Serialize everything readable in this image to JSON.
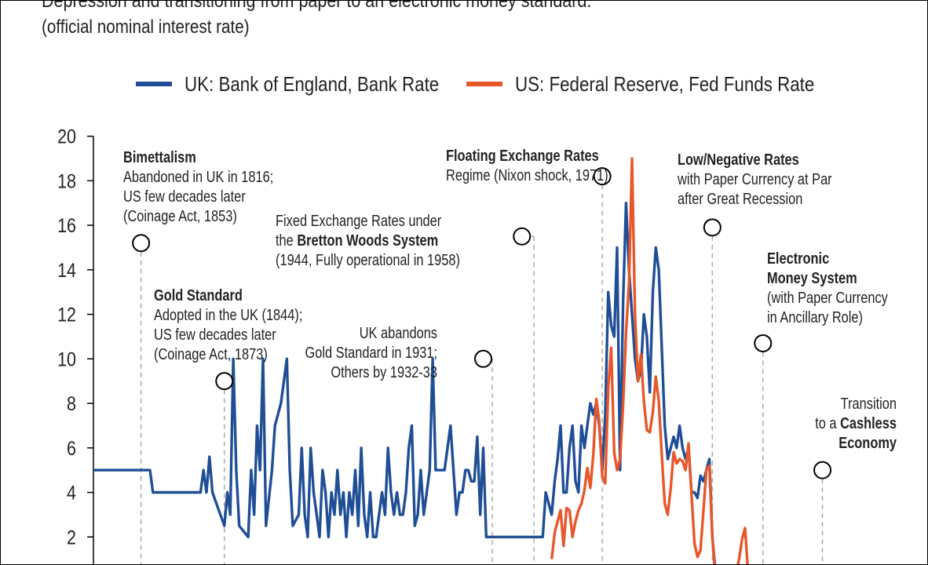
{
  "title": "Depression and transitioning from paper to an electronic money standard.",
  "subtitle": "(official nominal interest rate)",
  "colors": {
    "uk": "#1f4e96",
    "us": "#e8562a",
    "annotation": "#000000",
    "grid_dash": "#aaaaaa"
  },
  "chart_data": {
    "type": "line",
    "title": "",
    "xlabel": "",
    "ylabel": "",
    "ylim": [
      0,
      20
    ],
    "yticks": [
      "2",
      "4",
      "6",
      "8",
      "10",
      "12",
      "14",
      "16",
      "18",
      "20"
    ],
    "x_unit": "year",
    "xlim": [
      1800,
      2050
    ],
    "legend_position": "top",
    "legend": [
      {
        "label": "UK: Bank of England, Bank Rate",
        "color": "#1f4e96"
      },
      {
        "label": "US: Federal Reserve, Fed Funds Rate",
        "color": "#e8562a"
      }
    ],
    "series": [
      {
        "name": "UK: Bank of England, Bank Rate",
        "color": "#1f4e96",
        "points": [
          [
            1800,
            5
          ],
          [
            1819,
            5
          ],
          [
            1820,
            4
          ],
          [
            1830,
            4
          ],
          [
            1836,
            4
          ],
          [
            1837,
            5
          ],
          [
            1838,
            4
          ],
          [
            1839,
            5.6
          ],
          [
            1840,
            4
          ],
          [
            1844,
            2.5
          ],
          [
            1845,
            4
          ],
          [
            1846,
            3
          ],
          [
            1847,
            10
          ],
          [
            1848,
            5
          ],
          [
            1849,
            2.5
          ],
          [
            1852,
            2
          ],
          [
            1853,
            5
          ],
          [
            1854,
            3
          ],
          [
            1855,
            7
          ],
          [
            1856,
            5
          ],
          [
            1857,
            10
          ],
          [
            1858,
            2.5
          ],
          [
            1860,
            5
          ],
          [
            1861,
            7
          ],
          [
            1863,
            8
          ],
          [
            1864,
            9
          ],
          [
            1865,
            10
          ],
          [
            1866,
            5
          ],
          [
            1867,
            2.5
          ],
          [
            1869,
            3
          ],
          [
            1870,
            6
          ],
          [
            1871,
            3
          ],
          [
            1872,
            2
          ],
          [
            1873,
            6
          ],
          [
            1874,
            4
          ],
          [
            1875,
            3
          ],
          [
            1876,
            2
          ],
          [
            1877,
            5
          ],
          [
            1878,
            4
          ],
          [
            1879,
            2
          ],
          [
            1880,
            4
          ],
          [
            1881,
            3
          ],
          [
            1882,
            5
          ],
          [
            1883,
            3
          ],
          [
            1884,
            4
          ],
          [
            1885,
            2
          ],
          [
            1886,
            4
          ],
          [
            1887,
            3
          ],
          [
            1888,
            5
          ],
          [
            1889,
            2.5
          ],
          [
            1890,
            6
          ],
          [
            1891,
            3
          ],
          [
            1892,
            2
          ],
          [
            1893,
            4
          ],
          [
            1894,
            2
          ],
          [
            1895,
            2
          ],
          [
            1896,
            3
          ],
          [
            1897,
            4
          ],
          [
            1898,
            3
          ],
          [
            1899,
            6
          ],
          [
            1900,
            4
          ],
          [
            1901,
            3
          ],
          [
            1902,
            4
          ],
          [
            1903,
            3
          ],
          [
            1904,
            3
          ],
          [
            1905,
            4
          ],
          [
            1906,
            6
          ],
          [
            1907,
            7
          ],
          [
            1908,
            2.5
          ],
          [
            1909,
            3
          ],
          [
            1910,
            5
          ],
          [
            1911,
            3
          ],
          [
            1912,
            4
          ],
          [
            1913,
            5
          ],
          [
            1914,
            10
          ],
          [
            1915,
            5
          ],
          [
            1916,
            5
          ],
          [
            1917,
            5
          ],
          [
            1918,
            5
          ],
          [
            1919,
            6
          ],
          [
            1920,
            7
          ],
          [
            1921,
            5
          ],
          [
            1922,
            3
          ],
          [
            1923,
            4
          ],
          [
            1924,
            4
          ],
          [
            1925,
            5
          ],
          [
            1926,
            5
          ],
          [
            1927,
            4.5
          ],
          [
            1928,
            4.5
          ],
          [
            1929,
            6.5
          ],
          [
            1930,
            3
          ],
          [
            1931,
            6
          ],
          [
            1932,
            2
          ],
          [
            1939,
            2
          ],
          [
            1940,
            2
          ],
          [
            1951,
            2
          ],
          [
            1952,
            4
          ],
          [
            1953,
            3.5
          ],
          [
            1954,
            3
          ],
          [
            1955,
            4.5
          ],
          [
            1956,
            5.5
          ],
          [
            1957,
            7
          ],
          [
            1958,
            4
          ],
          [
            1959,
            4
          ],
          [
            1960,
            6
          ],
          [
            1961,
            7
          ],
          [
            1962,
            4.5
          ],
          [
            1963,
            4
          ],
          [
            1964,
            7
          ],
          [
            1965,
            6
          ],
          [
            1966,
            7
          ],
          [
            1967,
            8
          ],
          [
            1968,
            7.5
          ],
          [
            1969,
            8
          ],
          [
            1970,
            7
          ],
          [
            1971,
            5
          ],
          [
            1972,
            7.5
          ],
          [
            1973,
            13
          ],
          [
            1974,
            11.5
          ],
          [
            1975,
            11
          ],
          [
            1976,
            15
          ],
          [
            1977,
            5
          ],
          [
            1978,
            12.5
          ],
          [
            1979,
            17
          ],
          [
            1980,
            14
          ],
          [
            1981,
            12
          ],
          [
            1982,
            10
          ],
          [
            1983,
            9
          ],
          [
            1984,
            9.5
          ],
          [
            1985,
            12
          ],
          [
            1986,
            11
          ],
          [
            1987,
            8.5
          ],
          [
            1988,
            13
          ],
          [
            1989,
            15
          ],
          [
            1990,
            14
          ],
          [
            1991,
            10.5
          ],
          [
            1992,
            7
          ],
          [
            1993,
            5.5
          ],
          [
            1994,
            6
          ],
          [
            1995,
            6.5
          ],
          [
            1996,
            6
          ],
          [
            1997,
            7
          ],
          [
            1998,
            6
          ],
          [
            1999,
            5.5
          ],
          [
            2000,
            6
          ],
          [
            2001,
            4
          ],
          [
            2002,
            4
          ],
          [
            2003,
            3.75
          ],
          [
            2004,
            4.75
          ],
          [
            2005,
            4.5
          ],
          [
            2006,
            5
          ],
          [
            2007,
            5.5
          ],
          [
            2008,
            2
          ],
          [
            2009,
            0.5
          ]
        ]
      },
      {
        "name": "US: Federal Reserve, Fed Funds Rate",
        "color": "#e8562a",
        "points": [
          [
            1954,
            1
          ],
          [
            1955,
            2.2
          ],
          [
            1956,
            2.7
          ],
          [
            1957,
            3.2
          ],
          [
            1958,
            1.6
          ],
          [
            1959,
            3.3
          ],
          [
            1960,
            3.2
          ],
          [
            1961,
            2
          ],
          [
            1962,
            2.7
          ],
          [
            1963,
            3.2
          ],
          [
            1964,
            3.5
          ],
          [
            1965,
            4.1
          ],
          [
            1966,
            5.1
          ],
          [
            1967,
            4.2
          ],
          [
            1968,
            5.7
          ],
          [
            1969,
            8.2
          ],
          [
            1970,
            7.2
          ],
          [
            1971,
            4.7
          ],
          [
            1972,
            4.4
          ],
          [
            1973,
            8.7
          ],
          [
            1974,
            10.5
          ],
          [
            1975,
            5.8
          ],
          [
            1976,
            5
          ],
          [
            1977,
            5.5
          ],
          [
            1978,
            7.9
          ],
          [
            1979,
            11.2
          ],
          [
            1980,
            13.4
          ],
          [
            1981,
            19
          ],
          [
            1982,
            12
          ],
          [
            1983,
            9
          ],
          [
            1984,
            10.2
          ],
          [
            1985,
            8.1
          ],
          [
            1986,
            6.8
          ],
          [
            1987,
            6.7
          ],
          [
            1988,
            7.6
          ],
          [
            1989,
            9.2
          ],
          [
            1990,
            8.1
          ],
          [
            1991,
            5.7
          ],
          [
            1992,
            3.5
          ],
          [
            1993,
            3
          ],
          [
            1994,
            4.2
          ],
          [
            1995,
            5.8
          ],
          [
            1996,
            5.3
          ],
          [
            1997,
            5.5
          ],
          [
            1998,
            5.4
          ],
          [
            1999,
            5
          ],
          [
            2000,
            6.2
          ],
          [
            2001,
            3.9
          ],
          [
            2002,
            1.7
          ],
          [
            2003,
            1.1
          ],
          [
            2004,
            1.4
          ],
          [
            2005,
            3.2
          ],
          [
            2006,
            5
          ],
          [
            2007,
            5.2
          ],
          [
            2008,
            2
          ],
          [
            2009,
            0.2
          ],
          [
            2015,
            0.2
          ],
          [
            2016,
            0.4
          ],
          [
            2017,
            1
          ],
          [
            2018,
            1.9
          ],
          [
            2019,
            2.4
          ],
          [
            2020,
            0.4
          ]
        ]
      }
    ],
    "annotations": [
      {
        "year": 1816,
        "value": 15.2,
        "lines": [
          [
            "b",
            "Bimettalism"
          ],
          [
            "n",
            "Abandoned in UK in 1816;"
          ],
          [
            "n",
            "US few decades later"
          ],
          [
            "n",
            "(Coinage Act, 1853)"
          ]
        ]
      },
      {
        "year": 1844,
        "value": 9.0,
        "lines": [
          [
            "b",
            "Gold Standard"
          ],
          [
            "n",
            "Adopted in the UK (1844);"
          ],
          [
            "n",
            "US few decades later"
          ],
          [
            "n",
            "(Coinage Act, 1873)"
          ]
        ]
      },
      {
        "year": 1931,
        "value": 10.0,
        "lines": [
          [
            "n",
            "UK abandons"
          ],
          [
            "n",
            "Gold Standard in 1931;"
          ],
          [
            "n",
            "Others by 1932-33"
          ]
        ]
      },
      {
        "year": 1944,
        "value": 15.5,
        "lines": [
          [
            "n",
            "Fixed Exchange Rates under"
          ],
          [
            "m",
            "the ",
            "Bretton Woods System"
          ],
          [
            "n",
            "(1944, Fully operational in 1958)"
          ]
        ]
      },
      {
        "year": 1971,
        "value": 18.2,
        "lines": [
          [
            "b",
            "Floating Exchange Rates"
          ],
          [
            "n",
            "Regime (Nixon shock, 1971)"
          ]
        ]
      },
      {
        "year": 2008,
        "value": 15.9,
        "lines": [
          [
            "b",
            "Low/Negative Rates"
          ],
          [
            "n",
            "with Paper Currency at Par"
          ],
          [
            "n",
            "after Great Recession"
          ]
        ]
      },
      {
        "year": 2025,
        "value": 10.7,
        "lines": [
          [
            "b",
            "Electronic"
          ],
          [
            "b",
            "Money System"
          ],
          [
            "n",
            "(with Paper Currency"
          ],
          [
            "n",
            "in Ancillary Role)"
          ]
        ]
      },
      {
        "year": 2045,
        "value": 5.0,
        "lines": [
          [
            "n",
            "Transition"
          ],
          [
            "m",
            "to a ",
            "Cashless"
          ],
          [
            "b",
            "Economy"
          ]
        ]
      }
    ]
  }
}
